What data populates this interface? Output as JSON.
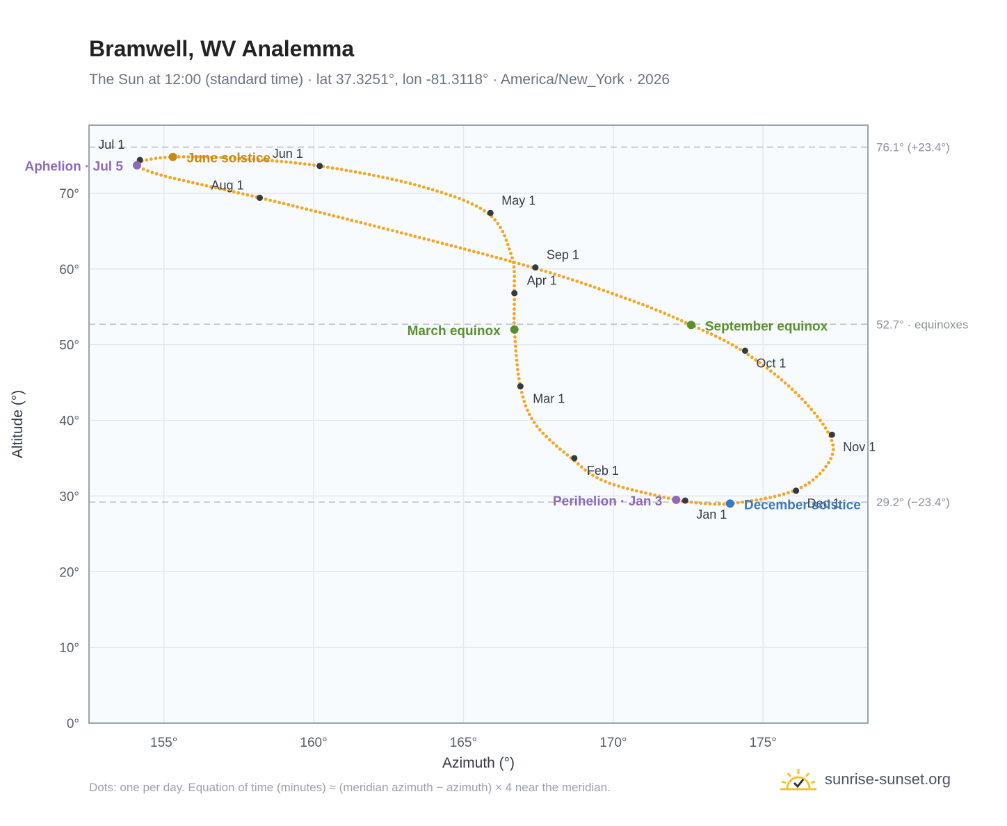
{
  "header": {
    "title": "Bramwell, WV Analemma",
    "subtitle": "The Sun at 12:00 (standard time) · lat 37.3251°, lon -81.3118° · America/New_York · 2026"
  },
  "footer": {
    "note": "Dots: one per day. Equation of time (minutes) ≈ (meridian azimuth − azimuth) × 4 near the meridian.",
    "brand": "sunrise-sunset.org"
  },
  "colors": {
    "curve": "#f5a623",
    "month_dot": "#333a44",
    "june": "#c98a12",
    "equinox": "#5a8f2e",
    "december": "#3a78bf",
    "apsis": "#8e6ab8",
    "refline": "#b7c0c9",
    "grid": "#e3e8ee",
    "plot_bg": "#f8fbfe",
    "frame": "#9aa3ae"
  },
  "chart_data": {
    "type": "scatter",
    "xlabel": "Azimuth (°)",
    "ylabel": "Altitude (°)",
    "xlim": [
      152.5,
      178.5
    ],
    "ylim": [
      0,
      79
    ],
    "x_ticks": [
      155,
      160,
      165,
      170,
      175
    ],
    "x_tick_labels": [
      "155°",
      "160°",
      "165°",
      "170°",
      "175°"
    ],
    "y_ticks": [
      0,
      10,
      20,
      30,
      40,
      50,
      60,
      70
    ],
    "y_tick_labels": [
      "0°",
      "10°",
      "20°",
      "30°",
      "40°",
      "50°",
      "60°",
      "70°"
    ],
    "grid": true,
    "path_anchors": [
      {
        "az": 172.3,
        "alt": 29.3
      },
      {
        "az": 169.8,
        "alt": 31.8
      },
      {
        "az": 168.6,
        "alt": 35.0
      },
      {
        "az": 167.4,
        "alt": 39.5
      },
      {
        "az": 166.9,
        "alt": 44.5
      },
      {
        "az": 166.7,
        "alt": 52.0
      },
      {
        "az": 166.7,
        "alt": 56.8
      },
      {
        "az": 166.6,
        "alt": 61.8
      },
      {
        "az": 165.8,
        "alt": 67.4
      },
      {
        "az": 163.5,
        "alt": 71.0
      },
      {
        "az": 160.2,
        "alt": 73.6
      },
      {
        "az": 157.5,
        "alt": 74.6
      },
      {
        "az": 155.3,
        "alt": 74.8
      },
      {
        "az": 154.2,
        "alt": 74.2
      },
      {
        "az": 154.1,
        "alt": 73.7
      },
      {
        "az": 155.0,
        "alt": 72.3
      },
      {
        "az": 158.2,
        "alt": 69.4
      },
      {
        "az": 162.5,
        "alt": 65.2
      },
      {
        "az": 167.3,
        "alt": 60.2
      },
      {
        "az": 170.5,
        "alt": 56.0
      },
      {
        "az": 172.6,
        "alt": 52.6
      },
      {
        "az": 174.3,
        "alt": 49.2
      },
      {
        "az": 176.0,
        "alt": 44.0
      },
      {
        "az": 177.2,
        "alt": 38.2
      },
      {
        "az": 177.2,
        "alt": 34.5
      },
      {
        "az": 176.1,
        "alt": 30.8
      },
      {
        "az": 173.9,
        "alt": 29.0
      },
      {
        "az": 172.3,
        "alt": 29.3
      }
    ],
    "month_markers": [
      {
        "label": "Jan 1",
        "az": 172.4,
        "alt": 29.4,
        "dx": 16,
        "dy": 26
      },
      {
        "label": "Feb 1",
        "az": 168.7,
        "alt": 35.0,
        "dx": 18,
        "dy": 24
      },
      {
        "label": "Mar 1",
        "az": 166.9,
        "alt": 44.5,
        "dx": 18,
        "dy": 24
      },
      {
        "label": "Apr 1",
        "az": 166.7,
        "alt": 56.8,
        "dx": 18,
        "dy": -12
      },
      {
        "label": "May 1",
        "az": 165.9,
        "alt": 67.4,
        "dx": 16,
        "dy": -12
      },
      {
        "label": "Jun 1",
        "az": 160.2,
        "alt": 73.6,
        "dx": -68,
        "dy": -12
      },
      {
        "label": "Jul 1",
        "az": 154.2,
        "alt": 74.4,
        "dx": -60,
        "dy": -16
      },
      {
        "label": "Aug 1",
        "az": 158.2,
        "alt": 69.4,
        "dx": -70,
        "dy": -12
      },
      {
        "label": "Sep 1",
        "az": 167.4,
        "alt": 60.2,
        "dx": 16,
        "dy": -12
      },
      {
        "label": "Oct 1",
        "az": 174.4,
        "alt": 49.2,
        "dx": 16,
        "dy": 24
      },
      {
        "label": "Nov 1",
        "az": 177.3,
        "alt": 38.1,
        "dx": 16,
        "dy": 24
      },
      {
        "label": "Dec 1",
        "az": 176.1,
        "alt": 30.7,
        "dx": 16,
        "dy": 24
      }
    ],
    "special_points": [
      {
        "label": "June solstice",
        "az": 155.3,
        "alt": 74.8,
        "color_key": "june",
        "anchor": "start",
        "dx": 20,
        "dy": 8
      },
      {
        "label": "March equinox",
        "az": 166.7,
        "alt": 52.0,
        "color_key": "equinox",
        "anchor": "end",
        "dx": -20,
        "dy": 8
      },
      {
        "label": "September equinox",
        "az": 172.6,
        "alt": 52.6,
        "color_key": "equinox",
        "anchor": "start",
        "dx": 20,
        "dy": 8
      },
      {
        "label": "December solstice",
        "az": 173.9,
        "alt": 29.0,
        "color_key": "december",
        "anchor": "start",
        "dx": 20,
        "dy": 8
      },
      {
        "label": "Aphelion · Jul 5",
        "az": 154.1,
        "alt": 73.7,
        "color_key": "apsis",
        "anchor": "end",
        "dx": -20,
        "dy": 8
      },
      {
        "label": "Perihelion · Jan 3",
        "az": 172.1,
        "alt": 29.5,
        "color_key": "apsis",
        "anchor": "end",
        "dx": -20,
        "dy": 8
      }
    ],
    "reference_lines": [
      {
        "alt": 76.1,
        "label": "76.1° (+23.4°)"
      },
      {
        "alt": 52.7,
        "label": "52.7° · equinoxes"
      },
      {
        "alt": 29.2,
        "label": "29.2° (−23.4°)"
      }
    ]
  }
}
